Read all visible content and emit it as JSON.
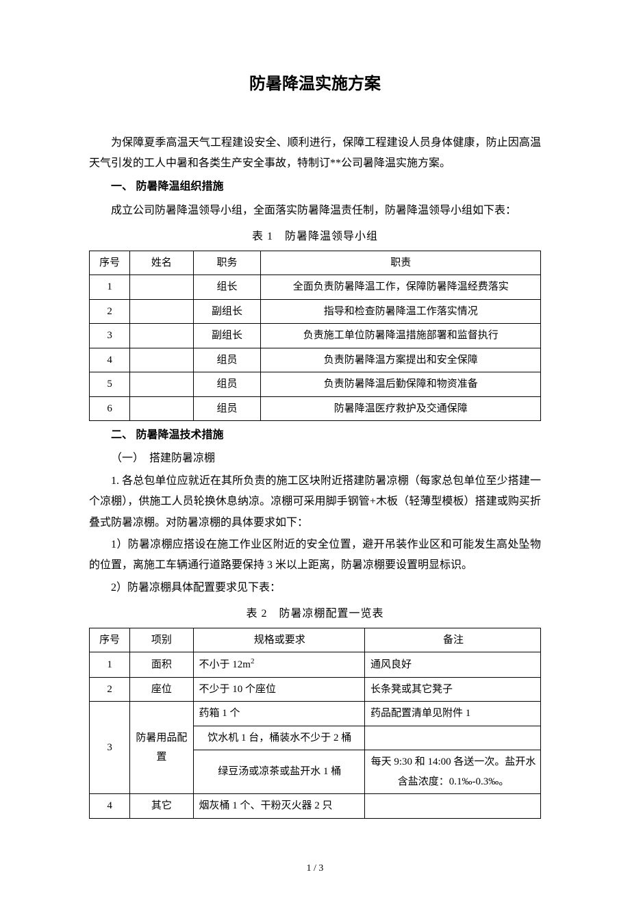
{
  "title": "防暑降温实施方案",
  "intro": "为保障夏季高温天气工程建设安全、顺利进行，保障工程建设人员身体健康，防止因高温天气引发的工人中暑和各类生产安全事故，特制订**公司暑降温实施方案。",
  "section1": {
    "heading": "一、 防暑降温组织措施",
    "para": "成立公司防暑降温领导小组，全面落实防暑降温责任制，防暑降温领导小组如下表：",
    "table_caption": "表 1　防暑降温领导小组",
    "headers": {
      "c1": "序号",
      "c2": "姓名",
      "c3": "职务",
      "c4": "职责"
    },
    "rows": [
      {
        "no": "1",
        "name": "",
        "role": "组长",
        "duty": "全面负责防暑降温工作，保障防暑降温经费落实"
      },
      {
        "no": "2",
        "name": "",
        "role": "副组长",
        "duty": "指导和检查防暑降温工作落实情况"
      },
      {
        "no": "3",
        "name": "",
        "role": "副组长",
        "duty": "负责施工单位防暑降温措施部署和监督执行"
      },
      {
        "no": "4",
        "name": "",
        "role": "组员",
        "duty": "负责防暑降温方案提出和安全保障"
      },
      {
        "no": "5",
        "name": "",
        "role": "组员",
        "duty": "负责防暑降温后勤保障和物资准备"
      },
      {
        "no": "6",
        "name": "",
        "role": "组员",
        "duty": "防暑降温医疗救护及交通保障"
      }
    ]
  },
  "section2": {
    "heading": "二、 防暑降温技术措施",
    "sub1_heading": "（一）　搭建防暑凉棚",
    "para1": "1. 各总包单位应就近在其所负责的施工区块附近搭建防暑凉棚（每家总包单位至少搭建一个凉棚），供施工人员轮换休息纳凉。凉棚可采用脚手钢管+木板（轻薄型模板）搭建或购买折叠式防暑凉棚。对防暑凉棚的具体要求如下：",
    "para2": "1）防暑凉棚应搭设在施工作业区附近的安全位置，避开吊装作业区和可能发生高处坠物的位置，离施工车辆通行道路要保持 3 米以上距离，防暑凉棚要设置明显标识。",
    "para3": "2）防暑凉棚具体配置要求见下表：",
    "table_caption": "表 2　防暑凉棚配置一览表",
    "headers": {
      "c1": "序号",
      "c2": "项别",
      "c3": "规格或要求",
      "c4": "备注"
    },
    "rows": {
      "r1": {
        "no": "1",
        "item": "面积",
        "spec_prefix": "不小于 12m",
        "spec_sup": "2",
        "note": "通风良好"
      },
      "r2": {
        "no": "2",
        "item": "座位",
        "spec": "不少于 10 个座位",
        "note": "长条凳或其它凳子"
      },
      "r3": {
        "no": "3",
        "item": "防暑用品配置",
        "a": {
          "spec": "药箱 1 个",
          "note": "药品配置清单见附件 1"
        },
        "b": {
          "spec": "饮水机 1 台，桶装水不少于 2 桶",
          "note": ""
        },
        "c": {
          "spec": "绿豆汤或凉茶或盐开水 1 桶",
          "note": "每天 9:30 和 14:00 各送一次。盐开水含盐浓度：0.1‰-0.3‰。"
        }
      },
      "r4": {
        "no": "4",
        "item": "其它",
        "spec": "烟灰桶 1 个、干粉灭火器 2 只",
        "note": ""
      }
    }
  },
  "page_num": "1 / 3"
}
